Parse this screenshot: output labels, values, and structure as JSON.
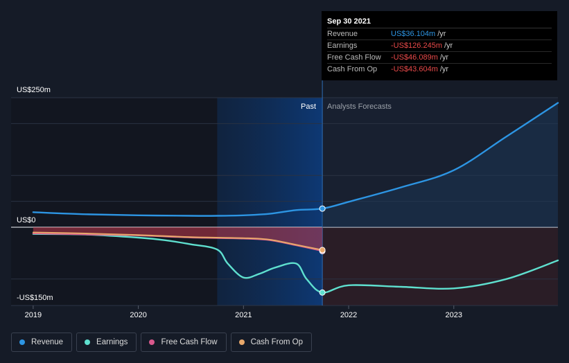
{
  "colors": {
    "background": "#151b27",
    "revenue": "#2d95e3",
    "earnings": "#5fe0cf",
    "free_cash_flow": "#d9598d",
    "cash_from_op": "#e8a86b",
    "negative": "#ea4a4a"
  },
  "chart_data": {
    "type": "line",
    "title": "",
    "x_unit": "year",
    "xlim": [
      2018.79,
      2023.99
    ],
    "ylim": [
      -150,
      250
    ],
    "y_labels": [
      "US$250m",
      "US$0",
      "-US$150m"
    ],
    "x_ticks": [
      "2019",
      "2020",
      "2021",
      "2022",
      "2023"
    ],
    "past_label": "Past",
    "forecast_label": "Analysts Forecasts",
    "past_end": 2021.75,
    "highlight_start": 2020.75,
    "series": [
      {
        "name": "Revenue",
        "key": "revenue",
        "x": [
          2019.0,
          2019.5,
          2020.0,
          2020.5,
          2020.75,
          2021.0,
          2021.25,
          2021.5,
          2021.75,
          2022.0,
          2022.5,
          2023.0,
          2023.5,
          2024.0
        ],
        "values": [
          29,
          25,
          23,
          22,
          22,
          23,
          26,
          33,
          36,
          49,
          77,
          110,
          175,
          240
        ]
      },
      {
        "name": "Earnings",
        "key": "earnings",
        "x": [
          2019.0,
          2019.5,
          2020.0,
          2020.25,
          2020.5,
          2020.75,
          2020.85,
          2021.0,
          2021.15,
          2021.3,
          2021.5,
          2021.6,
          2021.75,
          2022.0,
          2022.5,
          2023.0,
          2023.5,
          2024.0
        ],
        "values": [
          -13,
          -14,
          -20,
          -25,
          -33,
          -43,
          -70,
          -97,
          -90,
          -78,
          -70,
          -100,
          -126,
          -112,
          -115,
          -118,
          -100,
          -64
        ]
      },
      {
        "name": "Free Cash Flow",
        "key": "free_cash_flow",
        "x": [
          2019.0,
          2019.5,
          2020.0,
          2020.5,
          2021.0,
          2021.25,
          2021.5,
          2021.75
        ],
        "values": [
          -12,
          -14,
          -16,
          -20,
          -22,
          -25,
          -35,
          -46
        ]
      },
      {
        "name": "Cash From Op",
        "key": "cash_from_op",
        "x": [
          2019.0,
          2019.5,
          2020.0,
          2020.5,
          2021.0,
          2021.25,
          2021.5,
          2021.75
        ],
        "values": [
          -10,
          -12,
          -15,
          -19,
          -21,
          -24,
          -34,
          -44
        ]
      }
    ]
  },
  "tooltip": {
    "date": "Sep 30 2021",
    "rows": [
      {
        "label": "Revenue",
        "value": "US$36.104m",
        "unit": "/yr",
        "color": "#2d95e3"
      },
      {
        "label": "Earnings",
        "value": "-US$126.245m",
        "unit": "/yr",
        "color": "#ea4a4a"
      },
      {
        "label": "Free Cash Flow",
        "value": "-US$46.089m",
        "unit": "/yr",
        "color": "#ea4a4a"
      },
      {
        "label": "Cash From Op",
        "value": "-US$43.604m",
        "unit": "/yr",
        "color": "#ea4a4a"
      }
    ]
  },
  "legend": [
    {
      "label": "Revenue",
      "color": "#2d95e3"
    },
    {
      "label": "Earnings",
      "color": "#5fe0cf"
    },
    {
      "label": "Free Cash Flow",
      "color": "#d9598d"
    },
    {
      "label": "Cash From Op",
      "color": "#e8a86b"
    }
  ]
}
